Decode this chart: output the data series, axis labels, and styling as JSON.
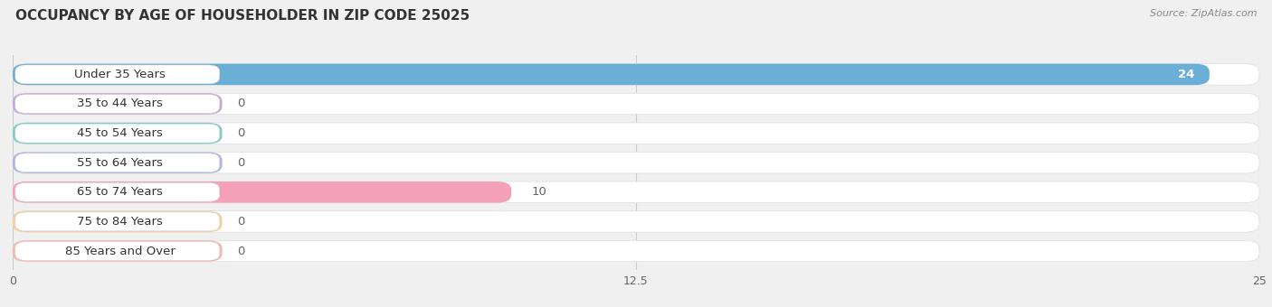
{
  "title": "OCCUPANCY BY AGE OF HOUSEHOLDER IN ZIP CODE 25025",
  "source": "Source: ZipAtlas.com",
  "categories": [
    "Under 35 Years",
    "35 to 44 Years",
    "45 to 54 Years",
    "55 to 64 Years",
    "65 to 74 Years",
    "75 to 84 Years",
    "85 Years and Over"
  ],
  "values": [
    24,
    0,
    0,
    0,
    10,
    0,
    0
  ],
  "bar_colors": [
    "#6baed6",
    "#c5a8d8",
    "#7ecec4",
    "#adb5e8",
    "#f4a0b8",
    "#f5cfa0",
    "#f5b8b0"
  ],
  "xlim": [
    0,
    25
  ],
  "xticks": [
    0,
    12.5,
    25
  ],
  "background_color": "#f0f0f0",
  "bar_bg_color": "#ffffff",
  "bar_height": 0.72,
  "label_fontsize": 9.5,
  "title_fontsize": 11,
  "value_color_inside": "#ffffff",
  "value_color_outside": "#666666",
  "label_box_color": "#ffffff",
  "label_text_color": "#333333",
  "grid_color": "#cccccc",
  "axis_label_color": "#666666"
}
